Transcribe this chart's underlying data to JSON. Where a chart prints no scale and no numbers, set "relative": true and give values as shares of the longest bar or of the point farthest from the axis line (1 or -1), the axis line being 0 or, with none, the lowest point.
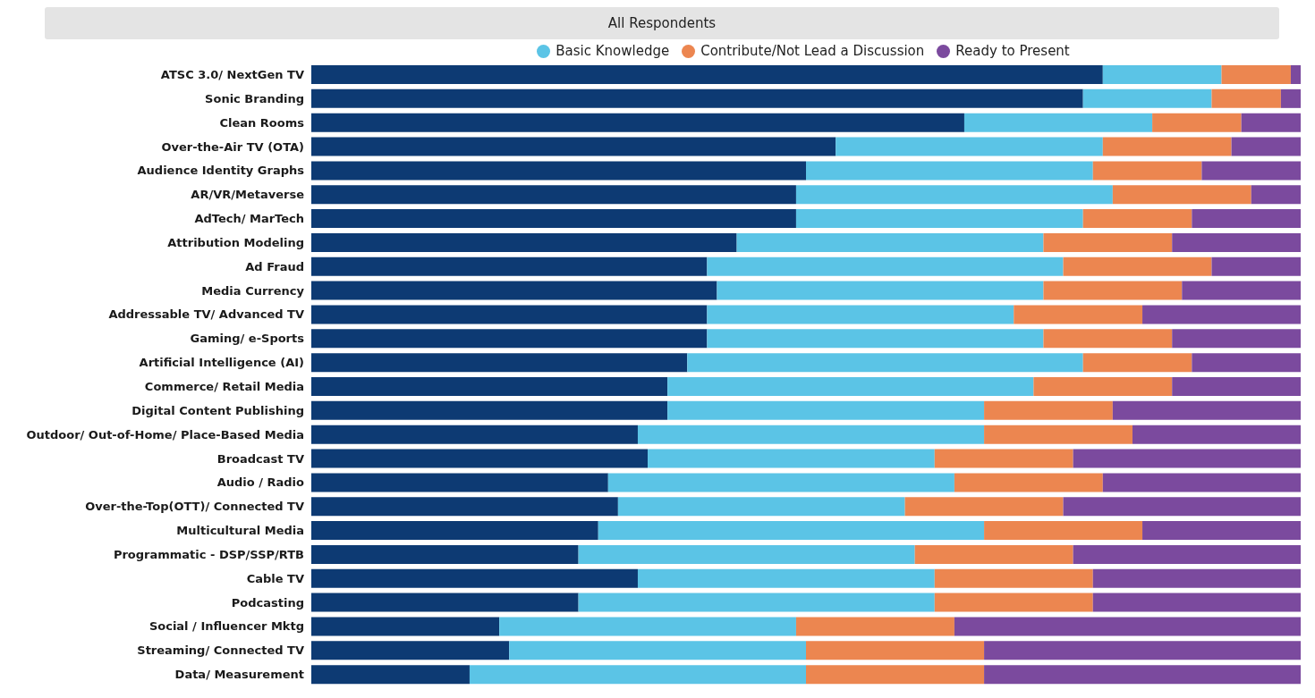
{
  "chart_data": {
    "type": "bar",
    "title": "All Respondents",
    "orientation": "horizontal",
    "stacked": true,
    "relative": true,
    "legend": "top",
    "grid": false,
    "categories": [
      "ATSC 3.0/ NextGen TV",
      "Sonic Branding",
      "Clean Rooms",
      "Over-the-Air TV (OTA)",
      "Audience Identity Graphs",
      "AR/VR/Metaverse",
      "AdTech/ MarTech",
      "Attribution Modeling",
      "Ad Fraud",
      "Media Currency",
      "Addressable TV/ Advanced TV",
      "Gaming/ e-Sports",
      "Artificial Intelligence (AI)",
      "Commerce/ Retail Media",
      "Digital Content Publishing",
      "Outdoor/ Out-of-Home/ Place-Based Media",
      "Broadcast TV",
      "Audio / Radio",
      "Over-the-Top(OTT)/ Connected TV",
      "Multicultural Media",
      "Programmatic - DSP/SSP/RTB",
      "Cable TV",
      "Podcasting",
      "Social / Influencer Mktg",
      "Streaming/ Connected TV",
      "Data/ Measurement"
    ],
    "series": [
      {
        "color": "#0d3a73",
        "values": [
          0.8,
          0.78,
          0.66,
          0.53,
          0.5,
          0.49,
          0.49,
          0.43,
          0.4,
          0.41,
          0.4,
          0.4,
          0.38,
          0.36,
          0.36,
          0.33,
          0.34,
          0.3,
          0.31,
          0.29,
          0.27,
          0.33,
          0.27,
          0.19,
          0.2,
          0.16
        ]
      },
      {
        "name": "Basic Knowledge",
        "color": "#5bc4e6",
        "values": [
          0.12,
          0.13,
          0.19,
          0.27,
          0.29,
          0.32,
          0.29,
          0.31,
          0.36,
          0.33,
          0.31,
          0.34,
          0.4,
          0.37,
          0.32,
          0.35,
          0.29,
          0.35,
          0.29,
          0.39,
          0.34,
          0.3,
          0.36,
          0.3,
          0.3,
          0.34
        ]
      },
      {
        "name": "Contribute/Not Lead a Discussion",
        "color": "#ec8650",
        "values": [
          0.07,
          0.07,
          0.09,
          0.13,
          0.11,
          0.14,
          0.11,
          0.13,
          0.15,
          0.14,
          0.13,
          0.13,
          0.11,
          0.14,
          0.13,
          0.15,
          0.14,
          0.15,
          0.16,
          0.16,
          0.16,
          0.16,
          0.16,
          0.16,
          0.18,
          0.18
        ]
      },
      {
        "name": "Ready to Present",
        "color": "#7b4a9e",
        "values": [
          0.01,
          0.02,
          0.06,
          0.07,
          0.1,
          0.05,
          0.11,
          0.13,
          0.09,
          0.12,
          0.16,
          0.13,
          0.11,
          0.13,
          0.19,
          0.17,
          0.23,
          0.2,
          0.24,
          0.16,
          0.23,
          0.21,
          0.21,
          0.35,
          0.32,
          0.32
        ]
      }
    ]
  }
}
